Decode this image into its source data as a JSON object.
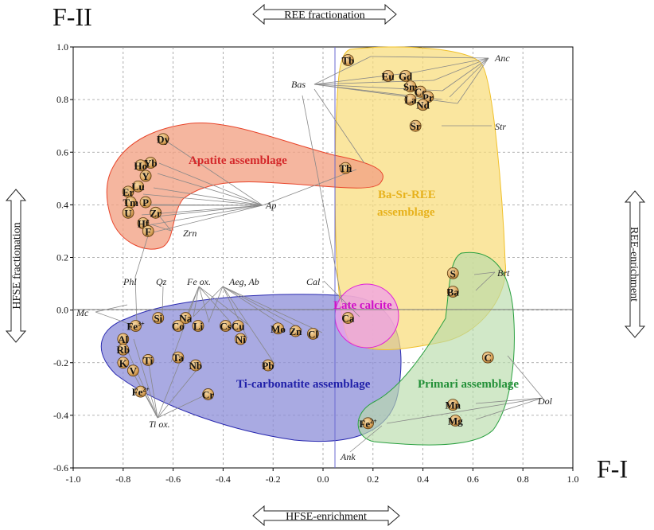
{
  "chart_data": {
    "type": "scatter",
    "title": "",
    "xlabel": "F-I",
    "ylabel": "F-II",
    "xlim": [
      -1.0,
      1.0
    ],
    "ylim": [
      -0.6,
      1.0
    ],
    "xticks": [
      "-1.0",
      "-0.8",
      "-0.6",
      "-0.4",
      "-0.2",
      "0.0",
      "0.2",
      "0.4",
      "0.6",
      "0.8",
      "1.0"
    ],
    "yticks": [
      "-0.6",
      "-0.4",
      "-0.2",
      "0.0",
      "0.2",
      "0.4",
      "0.6",
      "0.8",
      "1.0"
    ],
    "xtick_values": [
      -1.0,
      -0.8,
      -0.6,
      -0.4,
      -0.2,
      0.0,
      0.2,
      0.4,
      0.6,
      0.8,
      1.0
    ],
    "ytick_values": [
      -0.6,
      -0.4,
      -0.2,
      0.0,
      0.2,
      0.4,
      0.6,
      0.8,
      1.0
    ],
    "grid": true,
    "axis_arrows": {
      "top": "REE fractionation",
      "bottom": "HFSE-enrichment",
      "left": "HFSE fractionation",
      "right": "REE-enrichment"
    },
    "assemblages": [
      {
        "label": "Apatite assemblage",
        "color": "#e8442a",
        "fill": "#f2a184"
      },
      {
        "label": "Ba-Sr-REE assemblage",
        "color": "#f0c02a",
        "fill": "#f8dc7a"
      },
      {
        "label": "Late calcite",
        "color": "#e020d8",
        "fill": "#f0a0e8"
      },
      {
        "label": "Ti-carbonatite assemblage",
        "color": "#2a2ab0",
        "fill": "#8c8ed8"
      },
      {
        "label": "Primari assemblage",
        "color": "#2aa040",
        "fill": "#b8dcaa"
      }
    ],
    "points": [
      {
        "label": "Tb",
        "x": 0.1,
        "y": 0.95
      },
      {
        "label": "Eu",
        "x": 0.26,
        "y": 0.89
      },
      {
        "label": "Gd",
        "x": 0.33,
        "y": 0.89
      },
      {
        "label": "Sm",
        "x": 0.35,
        "y": 0.85
      },
      {
        "label": "Ce",
        "x": 0.39,
        "y": 0.83
      },
      {
        "label": "Pr",
        "x": 0.42,
        "y": 0.81
      },
      {
        "label": "La",
        "x": 0.35,
        "y": 0.8
      },
      {
        "label": "Nd",
        "x": 0.4,
        "y": 0.78
      },
      {
        "label": "Sr",
        "x": 0.37,
        "y": 0.7
      },
      {
        "label": "Dy",
        "x": -0.64,
        "y": 0.65
      },
      {
        "label": "Th",
        "x": 0.09,
        "y": 0.54
      },
      {
        "label": "Yb",
        "x": -0.69,
        "y": 0.56
      },
      {
        "label": "Ho",
        "x": -0.73,
        "y": 0.55
      },
      {
        "label": "Y",
        "x": -0.71,
        "y": 0.51
      },
      {
        "label": "Lu",
        "x": -0.74,
        "y": 0.47
      },
      {
        "label": "Er",
        "x": -0.78,
        "y": 0.45
      },
      {
        "label": "Tm",
        "x": -0.77,
        "y": 0.41
      },
      {
        "label": "P",
        "x": -0.71,
        "y": 0.41
      },
      {
        "label": "U",
        "x": -0.78,
        "y": 0.37
      },
      {
        "label": "Zr",
        "x": -0.67,
        "y": 0.37
      },
      {
        "label": "Hf",
        "x": -0.72,
        "y": 0.33
      },
      {
        "label": "F",
        "x": -0.7,
        "y": 0.3
      },
      {
        "label": "S",
        "x": 0.52,
        "y": 0.14
      },
      {
        "label": "Ba",
        "x": 0.52,
        "y": 0.07
      },
      {
        "label": "Ca",
        "x": 0.1,
        "y": -0.03
      },
      {
        "label": "Fe3+",
        "x": -0.75,
        "y": -0.06
      },
      {
        "label": "Si",
        "x": -0.66,
        "y": -0.03
      },
      {
        "label": "Na",
        "x": -0.55,
        "y": -0.03
      },
      {
        "label": "Co",
        "x": -0.58,
        "y": -0.06
      },
      {
        "label": "Li",
        "x": -0.5,
        "y": -0.06
      },
      {
        "label": "Cs",
        "x": -0.39,
        "y": -0.06
      },
      {
        "label": "Cu",
        "x": -0.34,
        "y": -0.06
      },
      {
        "label": "Mo",
        "x": -0.18,
        "y": -0.07
      },
      {
        "label": "Zn",
        "x": -0.11,
        "y": -0.08
      },
      {
        "label": "Cl",
        "x": -0.04,
        "y": -0.09
      },
      {
        "label": "Ni",
        "x": -0.33,
        "y": -0.11
      },
      {
        "label": "Al",
        "x": -0.8,
        "y": -0.11
      },
      {
        "label": "Rb",
        "x": -0.8,
        "y": -0.15
      },
      {
        "label": "K",
        "x": -0.8,
        "y": -0.2
      },
      {
        "label": "Ti",
        "x": -0.7,
        "y": -0.19
      },
      {
        "label": "Ta",
        "x": -0.58,
        "y": -0.18
      },
      {
        "label": "Nb",
        "x": -0.51,
        "y": -0.21
      },
      {
        "label": "Pb",
        "x": -0.22,
        "y": -0.21
      },
      {
        "label": "V",
        "x": -0.76,
        "y": -0.23
      },
      {
        "label": "Fe2+",
        "x": -0.73,
        "y": -0.31
      },
      {
        "label": "Cr",
        "x": -0.46,
        "y": -0.32
      },
      {
        "label": "C",
        "x": 0.66,
        "y": -0.18
      },
      {
        "label": "Mn",
        "x": 0.52,
        "y": -0.36
      },
      {
        "label": "Mg",
        "x": 0.53,
        "y": -0.42
      },
      {
        "label": "Fe2+",
        "x": 0.18,
        "y": -0.43
      }
    ],
    "mineral_labels": [
      "Anc",
      "Bas",
      "Str",
      "Ap",
      "Zrn",
      "Phl",
      "Qz",
      "Fe ox.",
      "Aeg, Ab",
      "Cal",
      "Brt",
      "Mc",
      "Ti ox.",
      "Dol",
      "Ank"
    ]
  }
}
